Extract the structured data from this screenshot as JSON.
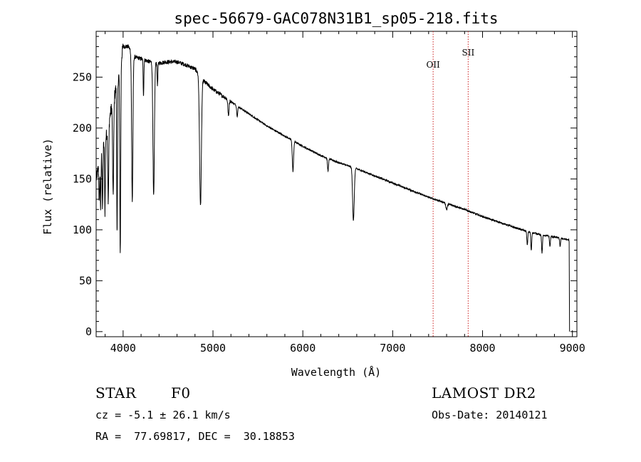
{
  "chart_data": {
    "type": "line",
    "title": "spec-56679-GAC078N31B1_sp05-218.fits",
    "xlabel": "Wavelength (Å)",
    "ylabel": "Flux (relative)",
    "xlim": [
      3700,
      9050
    ],
    "ylim": [
      -5,
      295
    ],
    "xticks": [
      4000,
      5000,
      6000,
      7000,
      8000,
      9000
    ],
    "yticks": [
      0,
      50,
      100,
      150,
      200,
      250
    ],
    "continuum": {
      "x": [
        3700,
        3760,
        3820,
        3880,
        3940,
        4000,
        4060,
        4120,
        4200,
        4300,
        4400,
        4500,
        4600,
        4700,
        4800,
        4900,
        5000,
        5100,
        5200,
        5400,
        5600,
        5800,
        6000,
        6200,
        6400,
        6600,
        6800,
        7000,
        7200,
        7400,
        7600,
        7800,
        8000,
        8200,
        8400,
        8600,
        8800,
        8960
      ],
      "y": [
        150,
        175,
        195,
        225,
        245,
        280,
        280,
        270,
        268,
        265,
        264,
        265,
        265,
        262,
        258,
        246,
        238,
        232,
        226,
        214,
        202,
        192,
        182,
        173,
        166,
        160,
        153,
        146,
        139,
        132,
        126,
        120,
        113,
        107,
        101,
        96,
        93,
        90
      ]
    },
    "absorption_lines": [
      {
        "center": 3735,
        "depth": 40,
        "width": 4
      },
      {
        "center": 3750,
        "depth": 50,
        "width": 4
      },
      {
        "center": 3771,
        "depth": 60,
        "width": 4
      },
      {
        "center": 3798,
        "depth": 70,
        "width": 4
      },
      {
        "center": 3835,
        "depth": 75,
        "width": 5
      },
      {
        "center": 3889,
        "depth": 95,
        "width": 6
      },
      {
        "center": 3933,
        "depth": 150,
        "width": 4
      },
      {
        "center": 3968,
        "depth": 185,
        "width": 5
      },
      {
        "center": 4102,
        "depth": 145,
        "width": 7
      },
      {
        "center": 4227,
        "depth": 35,
        "width": 4
      },
      {
        "center": 4340,
        "depth": 132,
        "width": 8
      },
      {
        "center": 4383,
        "depth": 22,
        "width": 4
      },
      {
        "center": 4861,
        "depth": 127,
        "width": 10
      },
      {
        "center": 5172,
        "depth": 16,
        "width": 6
      },
      {
        "center": 5270,
        "depth": 10,
        "width": 6
      },
      {
        "center": 5890,
        "depth": 30,
        "width": 7
      },
      {
        "center": 6280,
        "depth": 12,
        "width": 6
      },
      {
        "center": 6563,
        "depth": 52,
        "width": 9
      },
      {
        "center": 7600,
        "depth": 6,
        "width": 8
      },
      {
        "center": 8498,
        "depth": 14,
        "width": 5
      },
      {
        "center": 8542,
        "depth": 18,
        "width": 5
      },
      {
        "center": 8662,
        "depth": 18,
        "width": 5
      },
      {
        "center": 8750,
        "depth": 10,
        "width": 5
      },
      {
        "center": 8863,
        "depth": 8,
        "width": 5
      }
    ],
    "sky_lines": [
      {
        "label": "OII",
        "x": 7450
      },
      {
        "label": "SII",
        "x": 7840
      }
    ],
    "colors": {
      "spectrum": "#000000",
      "sky_line": "#cc2222",
      "axis": "#000000"
    }
  },
  "info": {
    "object_class": "STAR",
    "subclass": "F0",
    "survey": "LAMOST DR2",
    "cz": "cz = -5.1 ± 26.1 km/s",
    "obs_date": "Obs-Date: 20140121",
    "coords": "RA =  77.69817, DEC =  30.18853"
  }
}
